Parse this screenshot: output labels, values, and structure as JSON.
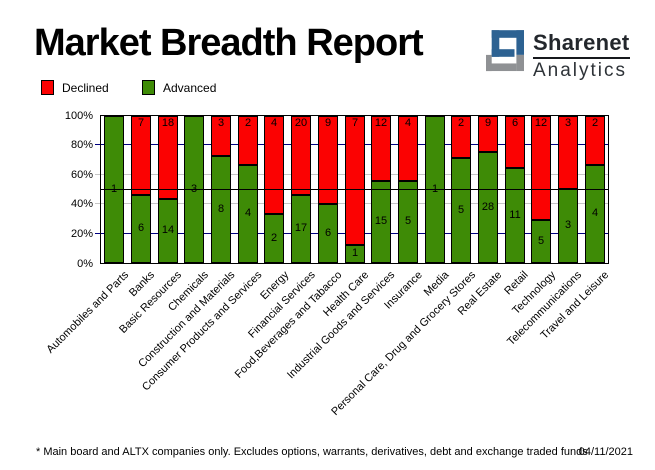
{
  "header": {
    "title": "Market Breadth Report",
    "logo": {
      "line1": "Sharenet",
      "line2": "Analytics"
    }
  },
  "legend": {
    "declined": {
      "label": "Declined",
      "color": "#fb0202"
    },
    "advanced": {
      "label": "Advanced",
      "color": "#3e8b06"
    }
  },
  "footer": {
    "note": "* Main board and ALTX companies only. Excludes options, warrants, derivatives, debt and exchange traded funds",
    "date": "04/11/2021"
  },
  "chart_data": {
    "type": "bar",
    "stacked": true,
    "normalized_percent": true,
    "title": "Market Breadth Report",
    "categories": [
      "Automobiles and Parts",
      "Banks",
      "Basic Resources",
      "Chemicals",
      "Construction and Materials",
      "Consumer Products and Services",
      "Energy",
      "Financial Services",
      "Food,Beverages and Tabacco",
      "Health Care",
      "Industrial Goods and Services",
      "Insurance",
      "Media",
      "Personal Care, Drug and Grocery Stores",
      "Real Estate",
      "Retail",
      "Technology",
      "Telecommunications",
      "Travel and Leisure"
    ],
    "series": [
      {
        "name": "Advanced",
        "color": "#3e8b06",
        "values": [
          1,
          6,
          14,
          3,
          8,
          4,
          2,
          17,
          6,
          1,
          15,
          5,
          1,
          5,
          28,
          11,
          5,
          3,
          4
        ]
      },
      {
        "name": "Declined",
        "color": "#fb0202",
        "values": [
          0,
          7,
          18,
          0,
          3,
          2,
          4,
          20,
          9,
          7,
          12,
          4,
          0,
          2,
          9,
          6,
          12,
          3,
          2
        ]
      }
    ],
    "ylim": [
      0,
      100
    ],
    "yticks": [
      "0%",
      "20%",
      "40%",
      "60%",
      "80%",
      "100%"
    ],
    "gridlines": {
      "navy_percents": [
        20,
        80
      ],
      "silver_percents": [
        40,
        60
      ],
      "reference_percent": 50
    },
    "colors": {
      "grid_navy": "#000080",
      "grid_silver": "#c6c6c6",
      "reference_line": "#000000"
    },
    "legend_position": "top-left",
    "bar_value_labels": "counts shown inside segments"
  }
}
